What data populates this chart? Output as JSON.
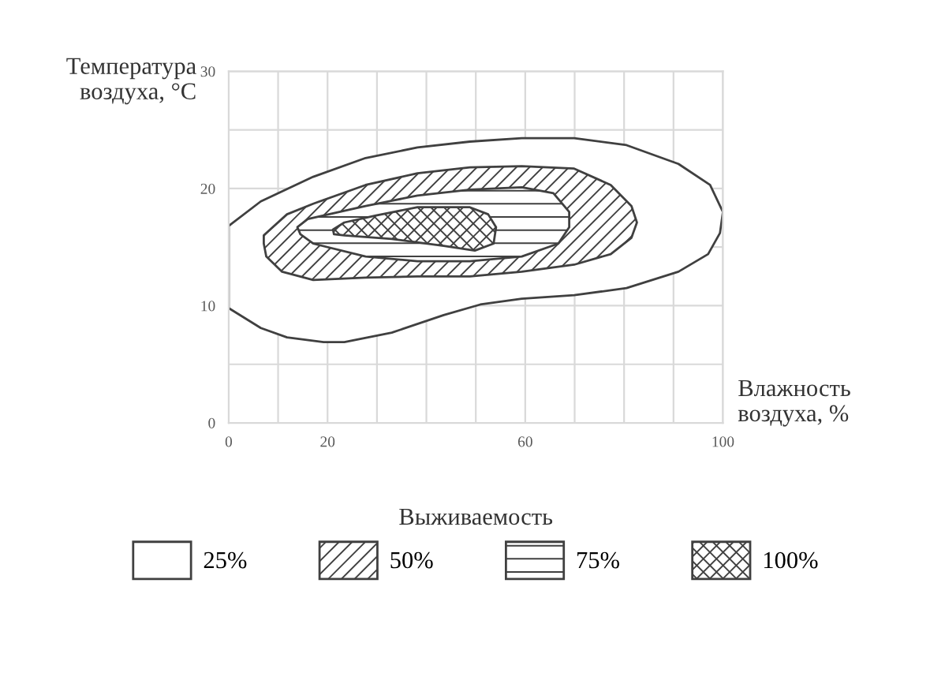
{
  "chart_data": {
    "type": "area",
    "xlabel": "Влажность\nвоздуха, %",
    "ylabel": "Температура\nвоздуха, °С",
    "legend_title": "Выживаемость",
    "legend": "bottom",
    "grid": true,
    "xlim": [
      0,
      100
    ],
    "ylim": [
      0,
      30
    ],
    "xticks": [
      0,
      {
        "value": 10,
        "label": null
      },
      20,
      {
        "value": 30,
        "label": null
      },
      {
        "value": 40,
        "label": null
      },
      {
        "value": 50,
        "label": null
      },
      60,
      {
        "value": 70,
        "label": null
      },
      {
        "value": 80,
        "label": null
      },
      {
        "value": 90,
        "label": null
      },
      100
    ],
    "yticks": [
      0,
      {
        "value": 5,
        "label": null
      },
      10,
      {
        "value": 15,
        "label": null
      },
      20,
      {
        "value": 25,
        "label": null
      },
      30
    ],
    "series": [
      {
        "name": "25%",
        "color": "#ffffff",
        "x": [
          0,
          6.5,
          17.1,
          27.7,
          38.2,
          48.8,
          59.3,
          69.9,
          80.5,
          91,
          97.4,
          100,
          99.4,
          97,
          91,
          80.5,
          69.9,
          59.3,
          50.9,
          43.5,
          33,
          23.4,
          19.2,
          11.8,
          6.5,
          0
        ],
        "values": [
          16.8,
          18.9,
          21.0,
          22.6,
          23.5,
          24.0,
          24.3,
          24.3,
          23.7,
          22.1,
          20.3,
          18.0,
          16.2,
          14.4,
          12.9,
          11.5,
          10.9,
          10.6,
          10.1,
          9.2,
          7.7,
          6.9,
          6.9,
          7.3,
          8.1,
          9.8
        ]
      },
      {
        "name": "50%",
        "color": "#404040",
        "x": [
          7.1,
          11.8,
          17.1,
          27.7,
          38.2,
          48.8,
          59.3,
          69.9,
          77.3,
          81.5,
          82.6,
          81.5,
          77.3,
          69.9,
          59.3,
          48.8,
          38.2,
          27.7,
          17.1,
          10.8,
          7.6,
          7.1
        ],
        "values": [
          16.0,
          17.8,
          18.7,
          20.3,
          21.3,
          21.8,
          21.9,
          21.7,
          20.3,
          18.5,
          17.1,
          15.8,
          14.4,
          13.5,
          12.9,
          12.5,
          12.5,
          12.4,
          12.2,
          12.9,
          14.2,
          15.3
        ]
      },
      {
        "name": "75%",
        "color": "#404040",
        "x": [
          13.9,
          16.0,
          27.7,
          38.2,
          48.8,
          59.3,
          65.7,
          68.9,
          68.9,
          66.7,
          59.3,
          48.8,
          38.2,
          27.7,
          17.1,
          14.5
        ],
        "values": [
          16.7,
          17.4,
          18.5,
          19.4,
          19.9,
          20.1,
          19.6,
          18.0,
          16.7,
          15.3,
          14.2,
          13.8,
          13.8,
          14.2,
          15.3,
          16.1
        ]
      },
      {
        "name": "100%",
        "color": "#404040",
        "x": [
          21.1,
          23.4,
          29.8,
          38.2,
          48.8,
          52.5,
          54.1,
          53.6,
          49.8,
          43.5,
          33,
          23.4,
          21.3
        ],
        "values": [
          16.5,
          17.1,
          17.7,
          18.4,
          18.4,
          17.8,
          16.7,
          15.3,
          14.7,
          15.1,
          15.7,
          16.0,
          16.1
        ]
      }
    ]
  }
}
